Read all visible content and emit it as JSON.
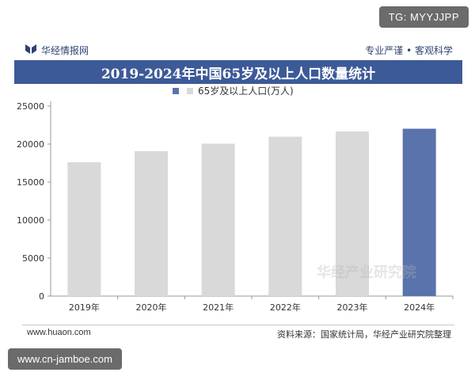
{
  "badges": {
    "telegram": "TG: MYYJJPP",
    "source_site": "www.cn-jamboe.com"
  },
  "header": {
    "brand": "华经情报网",
    "slogan": "专业严谨 • 客观科学",
    "title": "2019-2024年中国65岁及以上人口数量统计"
  },
  "footer": {
    "website": "www.huaon.com",
    "source": "资料来源：国家统计局，华经产业研究院整理"
  },
  "watermark": "华经产业研究院",
  "colors": {
    "brand_blue": "#3d5a98",
    "bar_gray": "#d9d9d9",
    "bar_highlight": "#5a73ad"
  },
  "chart_data": {
    "type": "bar",
    "categories": [
      "2019年",
      "2020年",
      "2021年",
      "2022年",
      "2023年",
      "2024年"
    ],
    "series": [
      {
        "name": "65岁及以上人口(万人)",
        "values": [
          17603,
          19064,
          20056,
          20978,
          21676,
          22023
        ]
      }
    ],
    "highlight_index": 5,
    "ylim": [
      0,
      25000
    ],
    "yticks": [
      0,
      5000,
      10000,
      15000,
      20000,
      25000
    ],
    "xlabel": "",
    "ylabel": "",
    "legend_position": "top-center",
    "grid": false
  }
}
